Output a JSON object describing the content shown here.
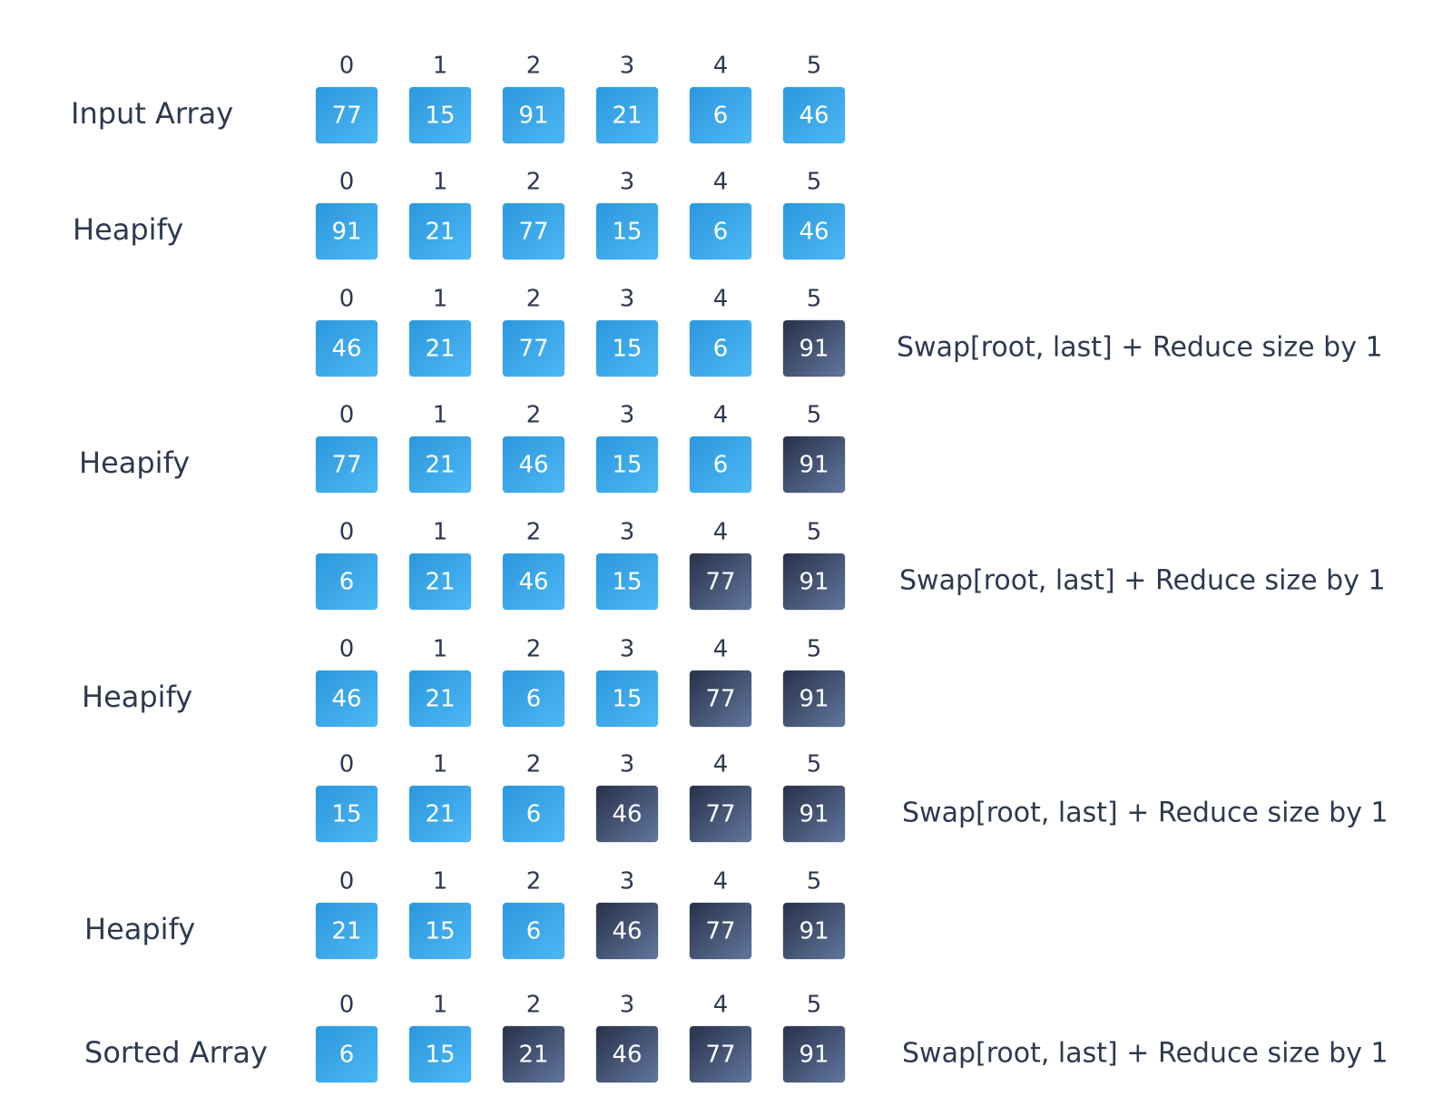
{
  "colors": {
    "heap": "#3ba8ec",
    "sorted": "#3c4865"
  },
  "rows": [
    {
      "label": "Input Array",
      "indices": [
        0,
        1,
        2,
        3,
        4,
        5
      ],
      "cells": [
        {
          "value": 77,
          "state": "heap"
        },
        {
          "value": 15,
          "state": "heap"
        },
        {
          "value": 91,
          "state": "heap"
        },
        {
          "value": 21,
          "state": "heap"
        },
        {
          "value": 6,
          "state": "heap"
        },
        {
          "value": 46,
          "state": "heap"
        }
      ]
    },
    {
      "label": "Heapify",
      "indices": [
        0,
        1,
        2,
        3,
        4,
        5
      ],
      "cells": [
        {
          "value": 91,
          "state": "heap"
        },
        {
          "value": 21,
          "state": "heap"
        },
        {
          "value": 77,
          "state": "heap"
        },
        {
          "value": 15,
          "state": "heap"
        },
        {
          "value": 6,
          "state": "heap"
        },
        {
          "value": 46,
          "state": "heap"
        }
      ]
    },
    {
      "note": "Swap[root, last] + Reduce size by 1",
      "indices": [
        0,
        1,
        2,
        3,
        4,
        5
      ],
      "cells": [
        {
          "value": 46,
          "state": "heap"
        },
        {
          "value": 21,
          "state": "heap"
        },
        {
          "value": 77,
          "state": "heap"
        },
        {
          "value": 15,
          "state": "heap"
        },
        {
          "value": 6,
          "state": "heap"
        },
        {
          "value": 91,
          "state": "sorted"
        }
      ]
    },
    {
      "label": "Heapify",
      "indices": [
        0,
        1,
        2,
        3,
        4,
        5
      ],
      "cells": [
        {
          "value": 77,
          "state": "heap"
        },
        {
          "value": 21,
          "state": "heap"
        },
        {
          "value": 46,
          "state": "heap"
        },
        {
          "value": 15,
          "state": "heap"
        },
        {
          "value": 6,
          "state": "heap"
        },
        {
          "value": 91,
          "state": "sorted"
        }
      ]
    },
    {
      "note": "Swap[root, last] + Reduce size by 1",
      "indices": [
        0,
        1,
        2,
        3,
        4,
        5
      ],
      "cells": [
        {
          "value": 6,
          "state": "heap"
        },
        {
          "value": 21,
          "state": "heap"
        },
        {
          "value": 46,
          "state": "heap"
        },
        {
          "value": 15,
          "state": "heap"
        },
        {
          "value": 77,
          "state": "sorted"
        },
        {
          "value": 91,
          "state": "sorted"
        }
      ]
    },
    {
      "label": "Heapify",
      "indices": [
        0,
        1,
        2,
        3,
        4,
        5
      ],
      "cells": [
        {
          "value": 46,
          "state": "heap"
        },
        {
          "value": 21,
          "state": "heap"
        },
        {
          "value": 6,
          "state": "heap"
        },
        {
          "value": 15,
          "state": "heap"
        },
        {
          "value": 77,
          "state": "sorted"
        },
        {
          "value": 91,
          "state": "sorted"
        }
      ]
    },
    {
      "note": "Swap[root, last] + Reduce size by 1",
      "indices": [
        0,
        1,
        2,
        3,
        4,
        5
      ],
      "cells": [
        {
          "value": 15,
          "state": "heap"
        },
        {
          "value": 21,
          "state": "heap"
        },
        {
          "value": 6,
          "state": "heap"
        },
        {
          "value": 46,
          "state": "sorted"
        },
        {
          "value": 77,
          "state": "sorted"
        },
        {
          "value": 91,
          "state": "sorted"
        }
      ]
    },
    {
      "label": "Heapify",
      "indices": [
        0,
        1,
        2,
        3,
        4,
        5
      ],
      "cells": [
        {
          "value": 21,
          "state": "heap"
        },
        {
          "value": 15,
          "state": "heap"
        },
        {
          "value": 6,
          "state": "heap"
        },
        {
          "value": 46,
          "state": "sorted"
        },
        {
          "value": 77,
          "state": "sorted"
        },
        {
          "value": 91,
          "state": "sorted"
        }
      ]
    },
    {
      "label": "Sorted Array",
      "note": "Swap[root, last] + Reduce size by 1",
      "indices": [
        0,
        1,
        2,
        3,
        4,
        5
      ],
      "cells": [
        {
          "value": 6,
          "state": "heap"
        },
        {
          "value": 15,
          "state": "heap"
        },
        {
          "value": 21,
          "state": "sorted"
        },
        {
          "value": 46,
          "state": "sorted"
        },
        {
          "value": 77,
          "state": "sorted"
        },
        {
          "value": 91,
          "state": "sorted"
        }
      ]
    }
  ]
}
